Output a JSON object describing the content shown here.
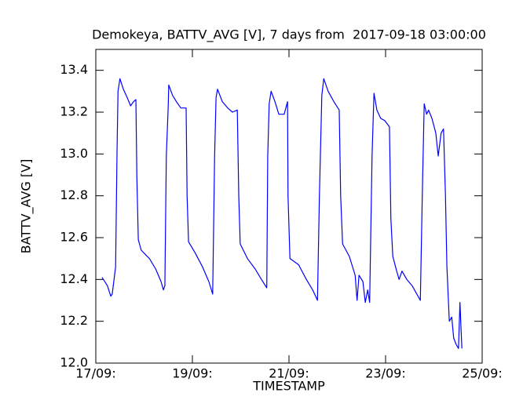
{
  "chart_data": {
    "type": "line",
    "title": "Demokeya, BATTV_AVG [V], 7 days from  2017-09-18 03:00:00",
    "x_label": "TIMESTAMP",
    "y_label": "BATTV_AVG [V]",
    "color": "#0000ff",
    "xlim": [
      17,
      25
    ],
    "xticks": [
      {
        "value": 17,
        "label": "17/09:"
      },
      {
        "value": 19,
        "label": "19/09:"
      },
      {
        "value": 21,
        "label": "21/09:"
      },
      {
        "value": 23,
        "label": "23/09:"
      },
      {
        "value": 25,
        "label": "25/09:"
      }
    ],
    "ylim": [
      12.0,
      13.5
    ],
    "yticks": [
      {
        "value": 12,
        "label": "12.0"
      },
      12.2,
      12.4,
      12.6,
      12.8,
      {
        "value": 13,
        "label": "13.0"
      },
      13.2,
      13.4
    ],
    "x": [
      17.13,
      17.24,
      17.31,
      17.34,
      17.41,
      17.44,
      17.46,
      17.5,
      17.57,
      17.65,
      17.72,
      17.78,
      17.83,
      17.85,
      17.88,
      17.94,
      18.11,
      18.24,
      18.35,
      18.4,
      18.43,
      18.46,
      18.5,
      18.51,
      18.59,
      18.67,
      18.76,
      18.87,
      18.89,
      18.92,
      19.05,
      19.21,
      19.34,
      19.42,
      19.46,
      19.49,
      19.52,
      19.62,
      19.73,
      19.83,
      19.93,
      19.96,
      19.99,
      20.14,
      20.3,
      20.43,
      20.54,
      20.56,
      20.59,
      20.63,
      20.71,
      20.79,
      20.9,
      20.97,
      20.98,
      21.02,
      21.2,
      21.36,
      21.49,
      21.59,
      21.63,
      21.68,
      21.72,
      21.81,
      21.93,
      22.04,
      22.07,
      22.11,
      22.25,
      22.37,
      22.41,
      22.45,
      22.53,
      22.58,
      22.63,
      22.67,
      22.72,
      22.76,
      22.82,
      22.9,
      22.98,
      23.08,
      23.11,
      23.15,
      23.23,
      23.28,
      23.34,
      23.44,
      23.55,
      23.72,
      23.76,
      23.8,
      23.85,
      23.89,
      23.96,
      24.04,
      24.09,
      24.15,
      24.2,
      24.24,
      24.27,
      24.32,
      24.37,
      24.41,
      24.46,
      24.51,
      24.54,
      24.58
    ],
    "values": [
      12.41,
      12.37,
      12.32,
      12.33,
      12.46,
      13.02,
      13.3,
      13.36,
      13.31,
      13.27,
      13.23,
      13.25,
      13.26,
      12.89,
      12.59,
      12.54,
      12.5,
      12.45,
      12.39,
      12.35,
      12.37,
      12.99,
      13.23,
      13.33,
      13.28,
      13.25,
      13.22,
      13.22,
      12.8,
      12.58,
      12.53,
      12.46,
      12.39,
      12.33,
      12.99,
      13.27,
      13.31,
      13.25,
      13.22,
      13.2,
      13.21,
      12.8,
      12.57,
      12.5,
      12.45,
      12.4,
      12.36,
      12.99,
      13.24,
      13.3,
      13.25,
      13.19,
      13.19,
      13.25,
      12.8,
      12.5,
      12.47,
      12.4,
      12.35,
      12.3,
      12.8,
      13.28,
      13.36,
      13.3,
      13.25,
      13.21,
      12.8,
      12.57,
      12.51,
      12.42,
      12.3,
      12.42,
      12.39,
      12.29,
      12.35,
      12.29,
      12.99,
      13.29,
      13.21,
      13.17,
      13.16,
      13.13,
      12.69,
      12.51,
      12.44,
      12.4,
      12.44,
      12.4,
      12.37,
      12.3,
      12.8,
      13.24,
      13.19,
      13.21,
      13.17,
      13.1,
      12.99,
      13.1,
      13.12,
      12.8,
      12.46,
      12.2,
      12.22,
      12.12,
      12.09,
      12.07,
      12.29,
      12.07
    ]
  }
}
